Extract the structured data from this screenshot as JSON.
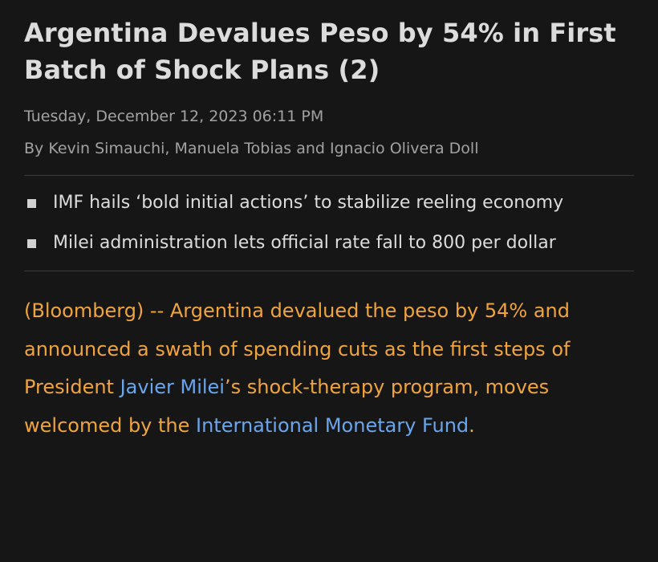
{
  "article": {
    "headline": "Argentina Devalues Peso by 54% in First Batch of Shock Plans (2)",
    "timestamp": "Tuesday, December 12, 2023 06:11 PM",
    "byline": "By Kevin Simauchi, Manuela Tobias and Ignacio Olivera Doll",
    "bullets": [
      {
        "text": "IMF hails ‘bold initial actions’ to stabilize reeling economy"
      },
      {
        "text": "Milei administration lets official rate fall to 800 per dollar"
      }
    ],
    "body": {
      "part1": "(Bloomberg) -- Argentina devalued the peso by 54% and announced a swath of spending cuts as the first steps of President ",
      "link1": "Javier Milei",
      "part2": "’s shock-therapy program, moves welcomed by the ",
      "link2": "International Monetary Fund",
      "part3": "."
    }
  },
  "colors": {
    "background": "#161616",
    "headline": "#dcdcdc",
    "meta": "#a2a2a2",
    "body_text": "#f0a53b",
    "link": "#6aa6ee",
    "divider": "#3a3a3a"
  }
}
